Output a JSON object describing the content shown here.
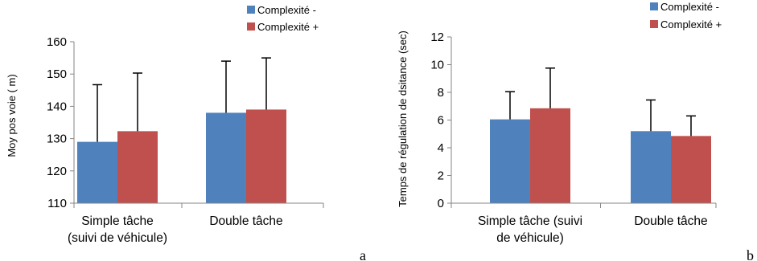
{
  "chart_data": [
    {
      "type": "bar",
      "panel": "a",
      "ylabel": "Moy pos voie ( m)",
      "ylim": [
        110,
        160
      ],
      "yticks": [
        110,
        120,
        130,
        140,
        150,
        160
      ],
      "categories": [
        [
          "Simple tâche",
          "(suivi de véhicule)"
        ],
        [
          "Double tâche"
        ]
      ],
      "series": [
        {
          "name": "Complexité -",
          "color": "#4F81BD",
          "values": [
            129,
            138
          ],
          "error": [
            17.7,
            16
          ]
        },
        {
          "name": "Complexité +",
          "color": "#C0504D",
          "values": [
            132.3,
            139
          ],
          "error": [
            18,
            16
          ]
        }
      ],
      "legend_position": "top-right",
      "grid": false
    },
    {
      "type": "bar",
      "panel": "b",
      "ylabel": "Temps  de régulation de dsitance (sec)",
      "ylim": [
        0,
        12
      ],
      "yticks": [
        0,
        2,
        4,
        6,
        8,
        10,
        12
      ],
      "categories": [
        [
          "Simple tâche (suivi",
          "de véhicule)"
        ],
        [
          "Double tâche"
        ]
      ],
      "series": [
        {
          "name": "Complexité -",
          "color": "#4F81BD",
          "values": [
            6.05,
            5.2
          ],
          "error": [
            2.0,
            2.25
          ]
        },
        {
          "name": "Complexité +",
          "color": "#C0504D",
          "values": [
            6.85,
            4.85
          ],
          "error": [
            2.9,
            1.45
          ]
        }
      ],
      "legend_position": "top-right",
      "grid": false
    }
  ]
}
